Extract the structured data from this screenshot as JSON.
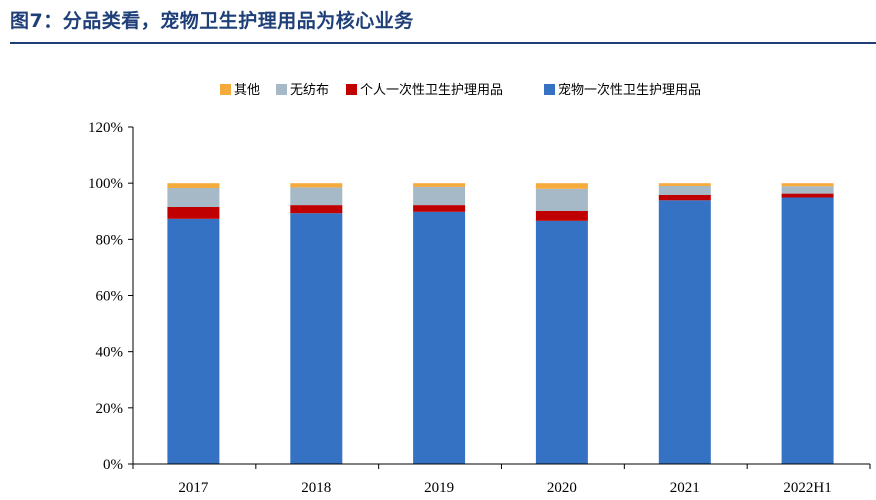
{
  "figure": {
    "title": "图7：分品类看，宠物卫生护理用品为核心业务"
  },
  "chart_data": {
    "type": "bar",
    "stacked": true,
    "categories": [
      "2017",
      "2018",
      "2019",
      "2020",
      "2021",
      "2022H1"
    ],
    "series": [
      {
        "name": "宠物一次性卫生护理用品",
        "values": [
          87.3,
          89.3,
          89.8,
          86.6,
          93.9,
          94.9
        ],
        "color": "#3572c4"
      },
      {
        "name": "个人一次性卫生护理用品",
        "values": [
          4.2,
          2.9,
          2.4,
          3.5,
          1.9,
          1.4
        ],
        "color": "#c00000"
      },
      {
        "name": "无纺布",
        "values": [
          6.8,
          6.3,
          6.5,
          7.9,
          3.2,
          2.6
        ],
        "color": "#a6b9c6"
      },
      {
        "name": "其他",
        "values": [
          1.7,
          1.5,
          1.3,
          2.0,
          1.0,
          1.1
        ],
        "color": "#f5aa3c"
      }
    ],
    "legend_order": [
      "其他",
      "无纺布",
      "个人一次性卫生护理用品",
      "宠物一次性卫生护理用品"
    ],
    "legend_position": "top",
    "ylim": [
      0,
      120
    ],
    "yticks": [
      "0%",
      "20%",
      "40%",
      "60%",
      "80%",
      "100%",
      "120%"
    ],
    "grid": false,
    "xlabel": "",
    "ylabel": ""
  }
}
